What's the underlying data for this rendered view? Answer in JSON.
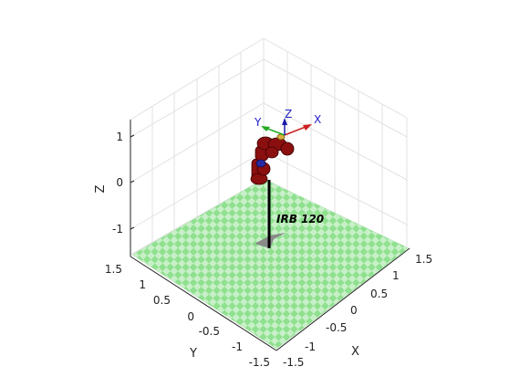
{
  "figure": {
    "axes": {
      "x_label": "X",
      "y_label": "Y",
      "z_label": "Z",
      "x_ticks": [
        "-1.5",
        "-1",
        "-0.5",
        "0",
        "0.5",
        "1",
        "1.5"
      ],
      "y_ticks": [
        "-1.5",
        "-1",
        "-0.5",
        "0",
        "0.5",
        "1",
        "1.5"
      ],
      "z_ticks": [
        "-1",
        "0",
        "1"
      ],
      "grid": true,
      "view": "isometric 3D"
    },
    "floor": {
      "pattern": "checkerboard",
      "color_a": "#8fe08f",
      "color_b": "#c8f0c8"
    },
    "robot": {
      "label": "IRB 120",
      "link_color": "#8b0f0f",
      "pedestal_color": "#000000"
    },
    "frame": {
      "x_label": "X",
      "y_label": "Y",
      "z_label": "Z",
      "x_color": "#cc2222",
      "y_color": "#22aa22",
      "z_color": "#1a1aaa",
      "label_color": "#2222cc"
    }
  }
}
